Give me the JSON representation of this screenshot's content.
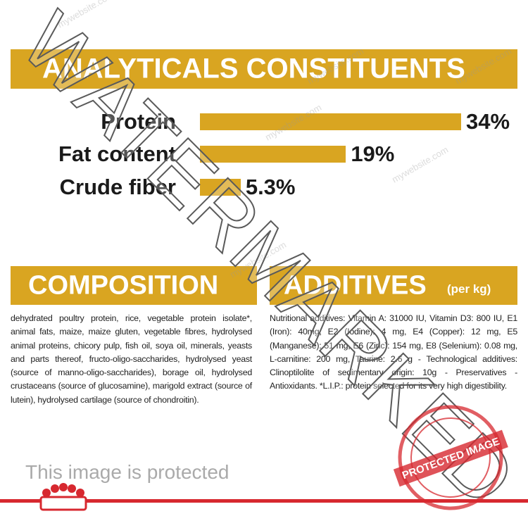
{
  "chart_data": {
    "type": "bar",
    "title": "ANALYTICALS CONSTITUENTS",
    "categories": [
      "Protein",
      "Fat content",
      "Crude fiber"
    ],
    "values": [
      34,
      19,
      5.3
    ],
    "value_labels": [
      "34%",
      "19%",
      "5.3%"
    ],
    "color": "#d9a521"
  },
  "composition": {
    "title": "COMPOSITION",
    "text": "dehydrated poultry protein, rice, vegetable protein isolate*, animal fats, maize, maize gluten, vegetable fibres, hydrolysed animal proteins, chicory pulp, fish oil, soya oil, minerals, yeasts and parts thereof, fructo-oligo-saccharides, hydrolysed yeast (source of manno-oligo-saccharides), borage oil, hydrolysed crustaceans (source of glucosamine), marigold extract (source of lutein), hydrolysed cartilage (source of chondroitin)."
  },
  "additives": {
    "title": "ADDITIVES",
    "subtitle": "(per kg)",
    "text": "Nutritional additives: Vitamin A: 31000 IU, Vitamin D3: 800 IU, E1 (Iron): 40mg, E2 (Iodine): 4 mg, E4 (Copper): 12 mg, E5 (Manganese): 51 mg, E6 (Zinc): 154 mg, E8 (Selenium): 0.08 mg, L-carnitine: 200 mg, Taurine: 2.6 g - Technological additives: Clinoptilolite of sedimentary origin: 10g - Preservatives - Antioxidants. *L.I.P.: protein selected for its very high digestibility."
  },
  "watermark": {
    "text": "WATERMARKED",
    "site": "mywebsite.com",
    "notice": "This image is protected",
    "stamp": "PROTECTED IMAGE"
  }
}
